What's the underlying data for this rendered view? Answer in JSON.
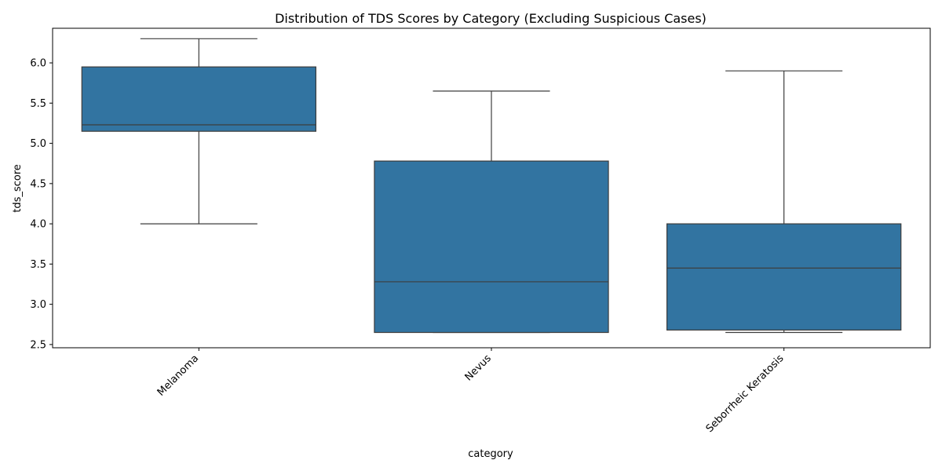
{
  "chart_data": {
    "type": "box",
    "title": "Distribution of TDS Scores by Category (Excluding Suspicious Cases)",
    "xlabel": "category",
    "ylabel": "tds_score",
    "categories": [
      "Melanoma",
      "Nevus",
      "Seborrheic Keratosis"
    ],
    "boxes": [
      {
        "category": "Melanoma",
        "whisker_low": 4.0,
        "q1": 5.15,
        "median": 5.23,
        "q3": 5.95,
        "whisker_high": 6.3
      },
      {
        "category": "Nevus",
        "whisker_low": 2.65,
        "q1": 2.65,
        "median": 3.28,
        "q3": 4.78,
        "whisker_high": 5.65
      },
      {
        "category": "Seborrheic Keratosis",
        "whisker_low": 2.65,
        "q1": 2.68,
        "median": 3.45,
        "q3": 4.0,
        "whisker_high": 5.9
      }
    ],
    "yticks": [
      2.5,
      3.0,
      3.5,
      4.0,
      4.5,
      5.0,
      5.5,
      6.0
    ],
    "ylim": [
      2.46,
      6.43
    ],
    "grid": false,
    "colors": {
      "box": "#3274a1",
      "line": "#3d3d3d",
      "axis": "#000000"
    }
  }
}
